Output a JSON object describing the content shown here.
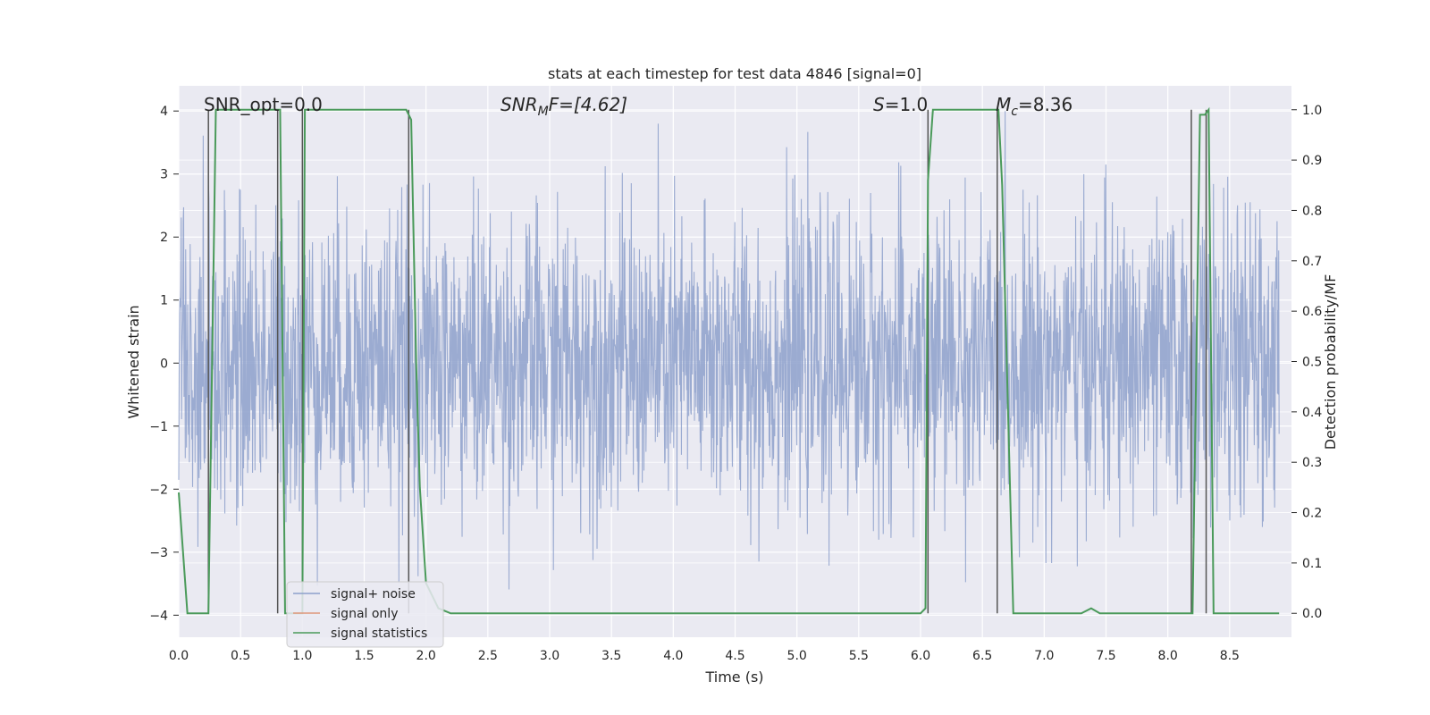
{
  "chart_data": {
    "type": "line",
    "title": "stats at each timestep for test data 4846 [signal=0]",
    "xlabel": "Time (s)",
    "ylabel": "Whitened strain",
    "y2label": "Detection probability/MF",
    "xlim": [
      0.0,
      9.0
    ],
    "ylim": [
      -4.35,
      4.4
    ],
    "y2lim": [
      -0.0475,
      1.0475
    ],
    "xticks": [
      0.0,
      0.5,
      1.0,
      1.5,
      2.0,
      2.5,
      3.0,
      3.5,
      4.0,
      4.5,
      5.0,
      5.5,
      6.0,
      6.5,
      7.0,
      7.5,
      8.0,
      8.5
    ],
    "xtick_labels": [
      "0.0",
      "0.5",
      "1.0",
      "1.5",
      "2.0",
      "2.5",
      "3.0",
      "3.5",
      "4.0",
      "4.5",
      "5.0",
      "5.5",
      "6.0",
      "6.5",
      "7.0",
      "7.5",
      "8.0",
      "8.5"
    ],
    "yticks": [
      4,
      3,
      2,
      1,
      0,
      -1,
      -2,
      -3,
      -4
    ],
    "ytick_labels": [
      "4",
      "3",
      "2",
      "1",
      "0",
      "−1",
      "−2",
      "−3",
      "−4"
    ],
    "y2ticks": [
      1.0,
      0.9,
      0.8,
      0.7,
      0.6,
      0.5,
      0.4,
      0.3,
      0.2,
      0.1,
      0.0
    ],
    "y2tick_labels": [
      "1.0",
      "0.9",
      "0.8",
      "0.7",
      "0.6",
      "0.5",
      "0.4",
      "0.3",
      "0.2",
      "0.1",
      "0.0"
    ],
    "grid": true,
    "legend_position": "lower-left",
    "annotations": {
      "snr_opt": "SNR_opt=0.0",
      "snr_mf_main": "SNR",
      "snr_mf_sub": "M",
      "snr_mf_tail": "F=[4.62]",
      "s_main": "S",
      "s_tail": "=1.0",
      "mc_main": "M",
      "mc_sub": "c",
      "mc_tail": "=8.36"
    },
    "series": [
      {
        "name": "signal+ noise",
        "color": "#8da0cb",
        "note": "whitened strain noise, approx. 8,000 samples between -3.6 and 4.0",
        "amplitude_range": [
          -3.6,
          4.0
        ]
      },
      {
        "name": "signal only",
        "color": "#e0977b",
        "values": []
      },
      {
        "name": "signal statistics",
        "color": "#4a9a5a",
        "x": [
          0.0,
          0.07,
          0.1,
          0.16,
          0.24,
          0.3,
          0.31,
          0.4,
          0.8,
          0.82,
          0.86,
          0.98,
          1.0,
          1.02,
          1.06,
          1.08,
          1.4,
          1.8,
          1.84,
          1.88,
          1.92,
          1.95,
          2.0,
          2.06,
          2.1,
          2.2,
          2.5,
          3.0,
          4.0,
          5.0,
          5.5,
          6.0,
          6.04,
          6.06,
          6.1,
          6.2,
          6.5,
          6.63,
          6.66,
          6.75,
          6.8,
          7.0,
          7.3,
          7.38,
          7.45,
          7.5,
          8.0,
          8.2,
          8.26,
          8.3,
          8.33,
          8.37,
          8.5,
          8.9
        ],
        "y": [
          0.24,
          0.0,
          0.0,
          0.0,
          0.0,
          1.0,
          1.0,
          1.0,
          1.0,
          1.0,
          0.0,
          0.0,
          0.0,
          1.0,
          1.0,
          1.0,
          1.0,
          1.0,
          1.0,
          0.98,
          0.5,
          0.25,
          0.06,
          0.03,
          0.01,
          0.0,
          0.0,
          0.0,
          0.0,
          0.0,
          0.0,
          0.0,
          0.01,
          0.86,
          1.0,
          1.0,
          1.0,
          1.0,
          0.85,
          0.0,
          0.0,
          0.0,
          0.0,
          0.01,
          0.0,
          0.0,
          0.0,
          0.0,
          0.99,
          0.99,
          1.0,
          0.0,
          0.0,
          0.0
        ]
      }
    ],
    "detection_markers_x": [
      0.24,
      0.8,
      1.0,
      1.86,
      6.06,
      6.62,
      8.19,
      8.31
    ]
  }
}
